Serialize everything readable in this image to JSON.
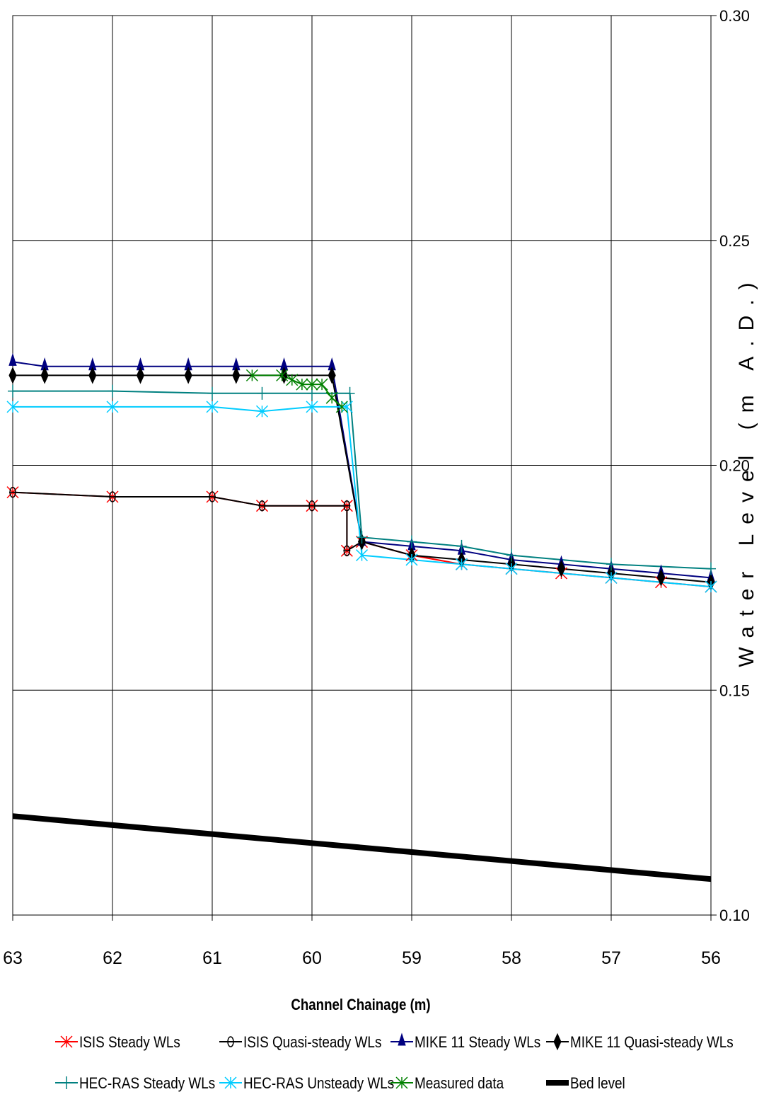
{
  "chart_data": {
    "type": "line",
    "title": "",
    "xlabel": "Channel Chainage (m)",
    "ylabel": "Water Level (m A.D.)",
    "xlim": [
      63,
      56
    ],
    "x_reversed": true,
    "ylim": [
      0.1,
      0.3
    ],
    "x_ticks": [
      63,
      62,
      61,
      60,
      59,
      58,
      57,
      56
    ],
    "x_tick_labels": [
      "63",
      "62",
      "61",
      "60",
      "59",
      "58",
      "57",
      "56"
    ],
    "y_ticks": [
      0.1,
      0.15,
      0.2,
      0.25,
      0.3
    ],
    "y_tick_labels": [
      "0.10",
      "0.15",
      "0.20",
      "0.25",
      "0.30"
    ],
    "y_axis_side": "right",
    "grid": true,
    "legend_position": "bottom",
    "series": [
      {
        "name": "ISIS Steady WLs",
        "color": "#ff0000",
        "marker": "asterisk",
        "x": [
          63,
          62,
          61,
          60.5,
          60,
          59.65,
          59.65,
          59.5,
          59,
          58.5,
          58,
          57.5,
          57,
          56.5,
          56
        ],
        "y": [
          0.194,
          0.193,
          0.193,
          0.191,
          0.191,
          0.191,
          0.181,
          0.183,
          0.18,
          0.178,
          0.177,
          0.176,
          0.175,
          0.174,
          0.173
        ]
      },
      {
        "name": "ISIS Quasi-steady WLs",
        "color": "#000000",
        "marker": "circle-bar",
        "x": [
          63,
          62,
          61,
          60.5,
          60,
          59.65,
          59.65,
          59.5
        ],
        "y": [
          0.194,
          0.193,
          0.193,
          0.191,
          0.191,
          0.191,
          0.181,
          0.183
        ]
      },
      {
        "name": "MIKE 11 Steady  WLs",
        "color": "#000080",
        "marker": "triangle",
        "x": [
          63,
          62.68,
          62.2,
          61.72,
          61.24,
          60.76,
          60.28,
          59.8,
          59.5,
          59,
          58.5,
          58,
          57.5,
          57,
          56.5,
          56
        ],
        "y": [
          0.223,
          0.222,
          0.222,
          0.222,
          0.222,
          0.222,
          0.222,
          0.222,
          0.183,
          0.182,
          0.181,
          0.179,
          0.178,
          0.177,
          0.176,
          0.175
        ]
      },
      {
        "name": "MIKE 11 Quasi-steady WLs",
        "color": "#000000",
        "marker": "diamond",
        "x": [
          63,
          62.68,
          62.2,
          61.72,
          61.24,
          60.76,
          60.28,
          59.8,
          59.5,
          59,
          58.5,
          58,
          57.5,
          57,
          56.5,
          56
        ],
        "y": [
          0.22,
          0.22,
          0.22,
          0.22,
          0.22,
          0.22,
          0.22,
          0.22,
          0.183,
          0.18,
          0.179,
          0.178,
          0.177,
          0.176,
          0.175,
          0.174
        ]
      },
      {
        "name": "HEC-RAS Steady WLs",
        "color": "#008080",
        "marker": "plus",
        "x": [
          63,
          62,
          61,
          60.5,
          60,
          59.62,
          59.5,
          59,
          58.5,
          58,
          57,
          56
        ],
        "y": [
          0.2165,
          0.2165,
          0.216,
          0.216,
          0.216,
          0.216,
          0.184,
          0.183,
          0.182,
          0.18,
          0.178,
          0.177
        ]
      },
      {
        "name": "HEC-RAS Unsteady WLs",
        "color": "#00ccff",
        "marker": "asterisk",
        "x": [
          63,
          62,
          61,
          60.5,
          60,
          59.65,
          59.5,
          59,
          58.5,
          58,
          57,
          56
        ],
        "y": [
          0.213,
          0.213,
          0.213,
          0.212,
          0.213,
          0.213,
          0.18,
          0.179,
          0.178,
          0.177,
          0.175,
          0.173
        ]
      },
      {
        "name": "Measured data",
        "color": "#008000",
        "marker": "asterisk",
        "x": [
          60.6,
          60.3,
          60.2,
          60.1,
          60.0,
          59.9,
          59.8,
          59.7
        ],
        "y": [
          0.22,
          0.22,
          0.219,
          0.218,
          0.218,
          0.218,
          0.215,
          0.213
        ]
      },
      {
        "name": "Bed level",
        "color": "#000000",
        "marker": "none",
        "x": [
          63,
          62,
          61,
          60,
          59,
          58,
          57,
          56
        ],
        "y": [
          0.122,
          0.12,
          0.118,
          0.116,
          0.114,
          0.112,
          0.11,
          0.108
        ]
      }
    ]
  }
}
